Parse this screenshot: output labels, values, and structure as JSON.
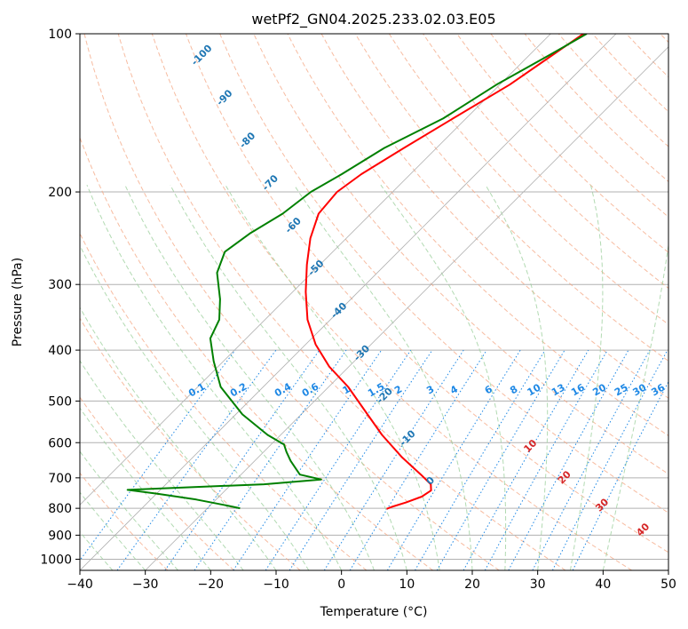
{
  "chart_data": {
    "type": "line",
    "title": "wetPf2_GN04.2025.233.02.03.E05",
    "xlabel": "Temperature (°C)",
    "ylabel": "Pressure (hPa)",
    "xlim": [
      -40,
      50
    ],
    "ylim": [
      1050,
      100
    ],
    "y_scale": "log",
    "grid": true,
    "x_ticks": [
      -40,
      -30,
      -20,
      -10,
      0,
      10,
      20,
      30,
      40,
      50
    ],
    "y_ticks": [
      100,
      200,
      300,
      400,
      500,
      600,
      700,
      800,
      900,
      1000
    ],
    "colors": {
      "temperature": "#ff0000",
      "dewpoint": "#008000",
      "grid": "#b0b0b0",
      "dry_adiabat": "#f4a582",
      "moist_adiabat": "#9fd19f",
      "mixing_ratio": "#1e88e5",
      "isotherm_label": "#1f77b4",
      "adiabat_label": "#d62728"
    },
    "series": [
      {
        "role": "temperature",
        "points": [
          [
            -45.0,
            100
          ],
          [
            -46.5,
            110
          ],
          [
            -48.5,
            125
          ],
          [
            -52.0,
            145
          ],
          [
            -55.0,
            165
          ],
          [
            -57.5,
            185
          ],
          [
            -58.5,
            200
          ],
          [
            -58.0,
            220
          ],
          [
            -55.5,
            245
          ],
          [
            -52.0,
            275
          ],
          [
            -48.0,
            310
          ],
          [
            -43.5,
            350
          ],
          [
            -38.5,
            390
          ],
          [
            -33.0,
            430
          ],
          [
            -27.0,
            470
          ],
          [
            -21.0,
            520
          ],
          [
            -14.5,
            580
          ],
          [
            -8.0,
            640
          ],
          [
            -2.5,
            690
          ],
          [
            0.5,
            720
          ],
          [
            1.5,
            740
          ],
          [
            1.0,
            760
          ],
          [
            -0.5,
            780
          ],
          [
            -2.0,
            795
          ],
          [
            -2.5,
            802
          ]
        ]
      },
      {
        "role": "dewpoint",
        "points": [
          [
            -44.5,
            100
          ],
          [
            -47.0,
            110
          ],
          [
            -50.5,
            125
          ],
          [
            -53.5,
            145
          ],
          [
            -58.0,
            165
          ],
          [
            -60.5,
            185
          ],
          [
            -62.5,
            200
          ],
          [
            -63.5,
            220
          ],
          [
            -65.5,
            240
          ],
          [
            -66.5,
            260
          ],
          [
            -64.5,
            285
          ],
          [
            -60.0,
            320
          ],
          [
            -57.0,
            350
          ],
          [
            -55.5,
            380
          ],
          [
            -51.5,
            420
          ],
          [
            -46.5,
            470
          ],
          [
            -39.0,
            530
          ],
          [
            -32.0,
            580
          ],
          [
            -28.0,
            605
          ],
          [
            -26.5,
            625
          ],
          [
            -24.5,
            650
          ],
          [
            -21.0,
            690
          ],
          [
            -17.0,
            705
          ],
          [
            -25.0,
            720
          ],
          [
            -40.0,
            733
          ],
          [
            -45.0,
            738
          ],
          [
            -40.0,
            750
          ],
          [
            -33.0,
            770
          ],
          [
            -28.0,
            788
          ],
          [
            -25.0,
            800
          ]
        ]
      }
    ],
    "isotherm_labels": [
      "-100",
      "-90",
      "-80",
      "-70",
      "-60",
      "-50",
      "-40",
      "-30",
      "-20",
      "-10",
      "0"
    ],
    "dry_adiabat_labels": [
      "10",
      "20",
      "30",
      "40"
    ],
    "mixing_ratio_labels": [
      "0.1",
      "0.2",
      "0.4",
      "0.6",
      "1",
      "1.5",
      "2",
      "3",
      "4",
      "6",
      "8",
      "10",
      "13",
      "16",
      "20",
      "25",
      "30",
      "36"
    ]
  }
}
